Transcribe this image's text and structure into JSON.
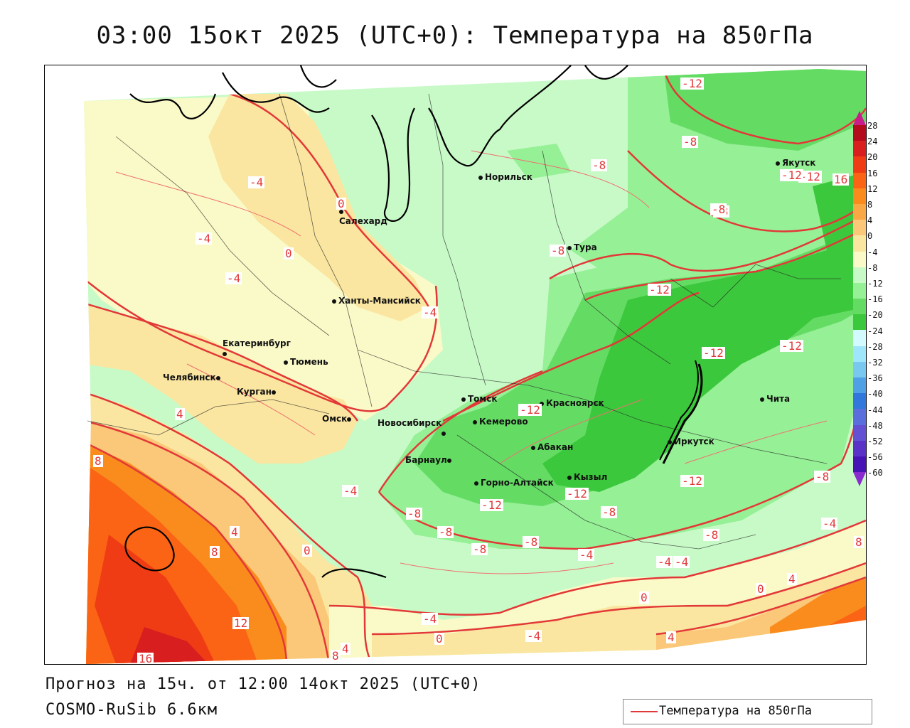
{
  "title": "03:00 15окт 2025 (UTC+0): Температура на 850гПа",
  "footer": {
    "forecast": "Прогноз на 15ч. от 12:00 14окт 2025 (UTC+0)",
    "model": "COSMO-RuSib 6.6км"
  },
  "legend": {
    "label": "Температура на 850гПа",
    "line_color": "#e23838"
  },
  "colorbar": {
    "labels": [
      "28",
      "24",
      "20",
      "16",
      "12",
      "8",
      "4",
      "0",
      "-4",
      "-8",
      "-12",
      "-16",
      "-20",
      "-24",
      "-28",
      "-32",
      "-36",
      "-40",
      "-44",
      "-48",
      "-52",
      "-56",
      "-60"
    ],
    "colors": [
      "#b40a1e",
      "#d81e1e",
      "#f03c14",
      "#fa6414",
      "#fa8c1e",
      "#faa846",
      "#fac878",
      "#fae6a0",
      "#fafac8",
      "#c8fac8",
      "#96f096",
      "#64dc64",
      "#3cc83c",
      "#d2faff",
      "#a0e6fa",
      "#78c8f0",
      "#50a0e6",
      "#3278dc",
      "#5a6edc",
      "#6450d2",
      "#5a32c8",
      "#4614b4"
    ],
    "top_arrow_color": "#c81b8c",
    "bottom_arrow_color": "#8a2bd0"
  },
  "cities": [
    {
      "name": "Норильск"
    },
    {
      "name": "Салехард"
    },
    {
      "name": "Якутск"
    },
    {
      "name": "Тура"
    },
    {
      "name": "Ханты-Мансийск"
    },
    {
      "name": "Екатеринбург"
    },
    {
      "name": "Тюмень"
    },
    {
      "name": "Челябинск"
    },
    {
      "name": "Курган"
    },
    {
      "name": "Омск"
    },
    {
      "name": "Томск"
    },
    {
      "name": "Новосибирск"
    },
    {
      "name": "Кемерово"
    },
    {
      "name": "Красноярск"
    },
    {
      "name": "Барнаул"
    },
    {
      "name": "Абакан"
    },
    {
      "name": "Горно-Алтайск"
    },
    {
      "name": "Кызыл"
    },
    {
      "name": "Иркутск"
    },
    {
      "name": "Чита"
    }
  ],
  "isotherm_labels": [
    "-12",
    "-8",
    "-8",
    "-12",
    "16",
    "-8",
    "-8",
    "-12",
    "-12",
    "-12",
    "-4",
    "-4",
    "-4",
    "-4",
    "0",
    "0",
    "-4",
    "-12",
    "-12",
    "-12",
    "-12",
    "-8",
    "-8",
    "-8",
    "-8",
    "-8",
    "-8",
    "-4",
    "-4",
    "-4",
    "-4",
    "0",
    "4",
    "4",
    "8",
    "8",
    "12",
    "16",
    "8",
    "4",
    "0",
    "0",
    "0",
    "-4",
    "-4",
    "4",
    "4",
    "8",
    "-8",
    "-12",
    "-8"
  ]
}
